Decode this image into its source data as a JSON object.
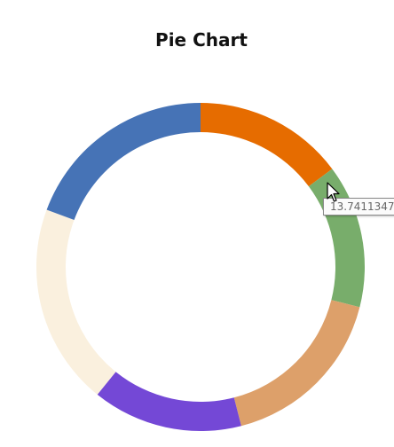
{
  "chart_data": {
    "type": "pie",
    "style": "donut",
    "title": "Pie Chart",
    "slices": [
      {
        "value": 14.4,
        "color": "#E66C00"
      },
      {
        "value": 13.7411347,
        "color": "#78AD6B"
      },
      {
        "value": 16.6,
        "color": "#DDA06A"
      },
      {
        "value": 14.4,
        "color": "#7448D6"
      },
      {
        "value": 19.3,
        "color": "#FAF0DE"
      },
      {
        "value": 18.8,
        "color": "#4673B6"
      }
    ],
    "start_angle_deg": 0,
    "direction": "clockwise"
  },
  "tooltip": {
    "text": "13.7411347"
  }
}
